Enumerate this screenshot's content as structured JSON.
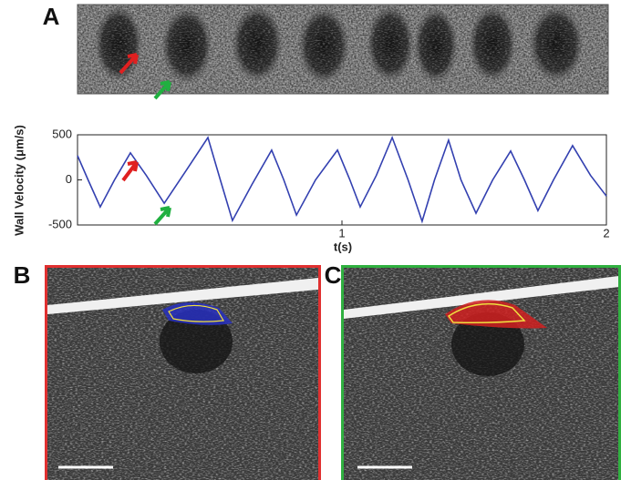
{
  "panel_labels": [
    "A",
    "B",
    "C"
  ],
  "chart_data": {
    "type": "line",
    "ylabel": "Wall Velocity (μm/s)",
    "xlabel": "t(s)",
    "x": [
      0,
      0.04,
      0.086,
      0.14,
      0.2,
      0.26,
      0.328,
      0.41,
      0.493,
      0.54,
      0.586,
      0.66,
      0.734,
      0.78,
      0.828,
      0.9,
      0.983,
      1.03,
      1.069,
      1.13,
      1.19,
      1.25,
      1.303,
      1.35,
      1.403,
      1.45,
      1.507,
      1.57,
      1.638,
      1.69,
      1.741,
      1.8,
      1.872,
      1.94,
      2.0
    ],
    "values": [
      270,
      0,
      -300,
      0,
      300,
      50,
      -260,
      100,
      470,
      0,
      -450,
      -50,
      330,
      0,
      -390,
      0,
      330,
      0,
      -300,
      50,
      470,
      0,
      -460,
      0,
      440,
      0,
      -370,
      0,
      320,
      0,
      -340,
      0,
      380,
      50,
      -180
    ],
    "color": "#3340b0",
    "xlim": [
      0,
      2
    ],
    "xticks": [
      1,
      2
    ],
    "ylim": [
      -500,
      500
    ],
    "yticks": [
      -500,
      0,
      500
    ],
    "grid": false
  }
}
